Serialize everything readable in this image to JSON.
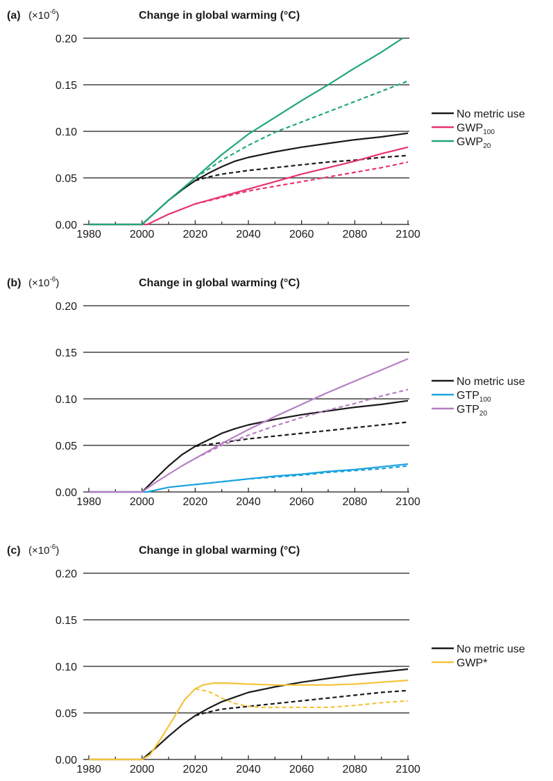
{
  "chart_data": [
    {
      "type": "line",
      "panel_label": "(a)",
      "multiplier_base": "(×10",
      "multiplier_exp": "-6",
      "multiplier_close": ")",
      "title": "Change in global warming (°C)",
      "xlim": [
        1980,
        2100
      ],
      "ylim": [
        0,
        0.2
      ],
      "x_ticks": [
        "1980",
        "2000",
        "2020",
        "2040",
        "2060",
        "2080",
        "2100"
      ],
      "y_ticks": [
        "0.00",
        "0.05",
        "0.10",
        "0.15",
        "0.20"
      ],
      "grid": "horizontal",
      "legend": {
        "placement": "right",
        "entries": [
          {
            "text": "No metric use",
            "sub": "",
            "color": "#1a1a1a"
          },
          {
            "text": "GWP",
            "sub": "100",
            "color": "#e8336d"
          },
          {
            "text": "GWP",
            "sub": "20",
            "color": "#1fa67a"
          }
        ]
      },
      "series": [
        {
          "color": "#1a1a1a",
          "style": "solid",
          "x": [
            1980,
            2000,
            2005,
            2010,
            2015,
            2020,
            2025,
            2030,
            2035,
            2040,
            2050,
            2060,
            2070,
            2080,
            2090,
            2100
          ],
          "y": [
            0,
            0,
            0.013,
            0.026,
            0.037,
            0.047,
            0.055,
            0.062,
            0.068,
            0.072,
            0.078,
            0.083,
            0.087,
            0.091,
            0.094,
            0.098
          ]
        },
        {
          "color": "#1a1a1a",
          "style": "dashed",
          "x": [
            2020,
            2025,
            2030,
            2040,
            2050,
            2060,
            2070,
            2080,
            2090,
            2100
          ],
          "y": [
            0.047,
            0.051,
            0.054,
            0.058,
            0.061,
            0.064,
            0.067,
            0.069,
            0.072,
            0.074
          ]
        },
        {
          "color": "#e8336d",
          "style": "solid",
          "x": [
            1980,
            2002,
            2010,
            2020,
            2030,
            2040,
            2050,
            2060,
            2070,
            2080,
            2090,
            2100
          ],
          "y": [
            0,
            0,
            0.011,
            0.022,
            0.03,
            0.038,
            0.046,
            0.054,
            0.061,
            0.068,
            0.076,
            0.083
          ]
        },
        {
          "color": "#e8336d",
          "style": "dashed",
          "x": [
            2020,
            2030,
            2040,
            2050,
            2060,
            2070,
            2080,
            2090,
            2100
          ],
          "y": [
            0.022,
            0.029,
            0.036,
            0.041,
            0.046,
            0.051,
            0.056,
            0.061,
            0.067
          ]
        },
        {
          "color": "#1fa67a",
          "style": "solid",
          "x": [
            1980,
            2000,
            2005,
            2010,
            2015,
            2020,
            2030,
            2040,
            2050,
            2060,
            2070,
            2080,
            2090,
            2098
          ],
          "y": [
            0,
            0,
            0.013,
            0.026,
            0.038,
            0.05,
            0.075,
            0.097,
            0.115,
            0.133,
            0.15,
            0.168,
            0.185,
            0.2
          ]
        },
        {
          "color": "#1fa67a",
          "style": "dashed",
          "x": [
            2020,
            2030,
            2040,
            2050,
            2060,
            2070,
            2080,
            2090,
            2100
          ],
          "y": [
            0.05,
            0.069,
            0.085,
            0.099,
            0.11,
            0.121,
            0.132,
            0.143,
            0.154
          ]
        }
      ]
    },
    {
      "type": "line",
      "panel_label": "(b)",
      "multiplier_base": "(×10",
      "multiplier_exp": "-6",
      "multiplier_close": ")",
      "title": "Change in global warming (°C)",
      "xlim": [
        1980,
        2100
      ],
      "ylim": [
        0,
        0.2
      ],
      "x_ticks": [
        "1980",
        "2000",
        "2020",
        "2040",
        "2060",
        "2080",
        "2100"
      ],
      "y_ticks": [
        "0.00",
        "0.05",
        "0.10",
        "0.15",
        "0.20"
      ],
      "grid": "horizontal",
      "legend": {
        "placement": "right",
        "entries": [
          {
            "text": "No metric use",
            "sub": "",
            "color": "#1a1a1a"
          },
          {
            "text": "GTP",
            "sub": "100",
            "color": "#1aa3dd"
          },
          {
            "text": "GTP",
            "sub": "20",
            "color": "#b77ec4"
          }
        ]
      },
      "series": [
        {
          "color": "#1a1a1a",
          "style": "solid",
          "x": [
            1980,
            2000,
            2005,
            2010,
            2015,
            2020,
            2025,
            2030,
            2035,
            2040,
            2050,
            2060,
            2070,
            2080,
            2090,
            2100
          ],
          "y": [
            0,
            0,
            0.014,
            0.028,
            0.04,
            0.049,
            0.056,
            0.063,
            0.068,
            0.072,
            0.078,
            0.083,
            0.087,
            0.091,
            0.094,
            0.098
          ]
        },
        {
          "color": "#1a1a1a",
          "style": "dashed",
          "x": [
            2020,
            2030,
            2040,
            2050,
            2060,
            2070,
            2080,
            2090,
            2100
          ],
          "y": [
            0.049,
            0.053,
            0.057,
            0.06,
            0.063,
            0.066,
            0.069,
            0.072,
            0.075
          ]
        },
        {
          "color": "#1aa3dd",
          "style": "solid",
          "x": [
            1980,
            2002,
            2010,
            2020,
            2030,
            2040,
            2050,
            2060,
            2070,
            2080,
            2090,
            2100
          ],
          "y": [
            0,
            0,
            0.005,
            0.008,
            0.011,
            0.014,
            0.017,
            0.019,
            0.022,
            0.024,
            0.027,
            0.03
          ]
        },
        {
          "color": "#1aa3dd",
          "style": "dashed",
          "x": [
            2020,
            2030,
            2040,
            2050,
            2060,
            2070,
            2080,
            2090,
            2100
          ],
          "y": [
            0.008,
            0.011,
            0.014,
            0.016,
            0.018,
            0.021,
            0.023,
            0.025,
            0.028
          ]
        },
        {
          "color": "#b77ec4",
          "style": "solid",
          "x": [
            1980,
            2000,
            2005,
            2010,
            2015,
            2020,
            2030,
            2040,
            2050,
            2060,
            2070,
            2080,
            2090,
            2100
          ],
          "y": [
            0,
            0,
            0.01,
            0.019,
            0.028,
            0.036,
            0.052,
            0.067,
            0.081,
            0.094,
            0.107,
            0.119,
            0.131,
            0.143
          ]
        },
        {
          "color": "#b77ec4",
          "style": "dashed",
          "x": [
            2020,
            2030,
            2040,
            2050,
            2060,
            2070,
            2080,
            2090,
            2100
          ],
          "y": [
            0.036,
            0.05,
            0.061,
            0.071,
            0.08,
            0.088,
            0.095,
            0.103,
            0.11
          ]
        }
      ]
    },
    {
      "type": "line",
      "panel_label": "(c)",
      "multiplier_base": "(×10",
      "multiplier_exp": "-6",
      "multiplier_close": ")",
      "title": "Change in global warming (°C)",
      "xlim": [
        1980,
        2100
      ],
      "ylim": [
        0,
        0.2
      ],
      "x_ticks": [
        "1980",
        "2000",
        "2020",
        "2040",
        "2060",
        "2080",
        "2100"
      ],
      "y_ticks": [
        "0.00",
        "0.05",
        "0.10",
        "0.15",
        "0.20"
      ],
      "grid": "horizontal",
      "legend": {
        "placement": "right",
        "entries": [
          {
            "text": "No metric use",
            "sub": "",
            "color": "#1a1a1a"
          },
          {
            "text": "GWP*",
            "sub": "",
            "color": "#f5c33b"
          }
        ]
      },
      "series": [
        {
          "color": "#1a1a1a",
          "style": "solid",
          "x": [
            1980,
            2000,
            2005,
            2010,
            2015,
            2020,
            2025,
            2030,
            2035,
            2040,
            2050,
            2060,
            2070,
            2080,
            2090,
            2100
          ],
          "y": [
            0,
            0,
            0.012,
            0.025,
            0.037,
            0.047,
            0.055,
            0.062,
            0.067,
            0.072,
            0.078,
            0.083,
            0.087,
            0.091,
            0.094,
            0.097
          ]
        },
        {
          "color": "#1a1a1a",
          "style": "dashed",
          "x": [
            2020,
            2025,
            2030,
            2040,
            2050,
            2060,
            2070,
            2080,
            2090,
            2100
          ],
          "y": [
            0.047,
            0.051,
            0.054,
            0.057,
            0.06,
            0.063,
            0.066,
            0.069,
            0.072,
            0.074
          ]
        },
        {
          "color": "#f5c33b",
          "style": "solid",
          "x": [
            1980,
            2000,
            2003,
            2007,
            2012,
            2016,
            2020,
            2023,
            2027,
            2032,
            2040,
            2050,
            2060,
            2070,
            2080,
            2090,
            2100
          ],
          "y": [
            0,
            0,
            0.005,
            0.022,
            0.045,
            0.064,
            0.076,
            0.08,
            0.082,
            0.082,
            0.081,
            0.08,
            0.08,
            0.08,
            0.081,
            0.083,
            0.085
          ]
        },
        {
          "color": "#f5c33b",
          "style": "dashed",
          "x": [
            2020,
            2025,
            2030,
            2035,
            2040,
            2045,
            2050,
            2060,
            2070,
            2080,
            2090,
            2100
          ],
          "y": [
            0.076,
            0.073,
            0.066,
            0.06,
            0.057,
            0.056,
            0.056,
            0.056,
            0.056,
            0.058,
            0.061,
            0.063
          ]
        }
      ]
    }
  ]
}
